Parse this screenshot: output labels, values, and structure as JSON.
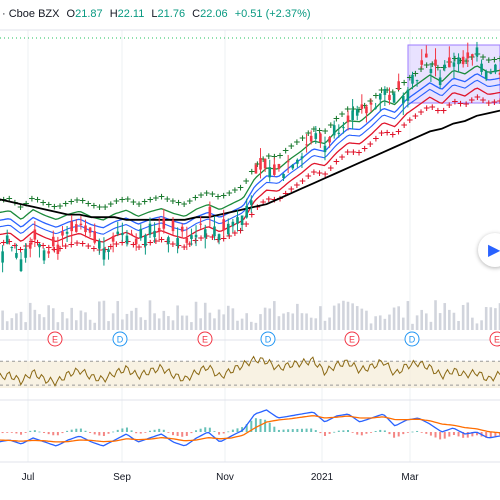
{
  "header": {
    "exchange": "· Cboe BZX",
    "o_label": "O",
    "o_value": "21.87",
    "h_label": "H",
    "h_value": "22.11",
    "l_label": "L",
    "l_value": "21.76",
    "c_label": "C",
    "c_value": "22.06",
    "change": "+0.51 (+2.37%)"
  },
  "colors": {
    "up": "#089981",
    "down": "#f23645",
    "ma_black": "#000000",
    "ribbon_green": "#1b8a3a",
    "ribbon_blue": "#2962ff",
    "ribbon_red": "#e0142b",
    "cross_green": "#1b7a2f",
    "cross_red": "#e0142b",
    "rsi": "#8b6914",
    "macd": "#2962ff",
    "signal": "#ff6d00",
    "box": "#9c7bff"
  },
  "event_markers": [
    {
      "type": "E",
      "color": "#f23645"
    },
    {
      "type": "D",
      "color": "#2196f3"
    },
    {
      "type": "E",
      "color": "#f23645"
    },
    {
      "type": "D",
      "color": "#2196f3"
    },
    {
      "type": "E",
      "color": "#f23645"
    },
    {
      "type": "D",
      "color": "#2196f3"
    },
    {
      "type": "E",
      "color": "#f23645"
    }
  ],
  "x_axis": [
    "Jul",
    "Sep",
    "Nov",
    "2021",
    "Mar"
  ],
  "chart_data": {
    "type": "line",
    "price_close": [
      15.2,
      15.4,
      14.9,
      15.6,
      15.3,
      15.1,
      15.5,
      15.7,
      15.4,
      15.2,
      15.6,
      15.9,
      15.5,
      15.8,
      16.0,
      15.7,
      15.5,
      15.9,
      16.2,
      15.8,
      16.1,
      16.4,
      17.6,
      18.2,
      18.0,
      18.5,
      18.9,
      19.4,
      19.1,
      19.8,
      20.3,
      20.1,
      20.6,
      21.2,
      20.8,
      21.5,
      21.9,
      22.3,
      21.8,
      22.4,
      22.1,
      22.5,
      22.0,
      22.06
    ],
    "ma_long": [
      17.0,
      16.9,
      16.8,
      16.7,
      16.6,
      16.5,
      16.4,
      16.4,
      16.3,
      16.3,
      16.3,
      16.2,
      16.2,
      16.2,
      16.2,
      16.2,
      16.2,
      16.3,
      16.3,
      16.4,
      16.5,
      16.6,
      16.7,
      16.8,
      17.0,
      17.2,
      17.4,
      17.6,
      17.8,
      18.0,
      18.2,
      18.4,
      18.6,
      18.8,
      19.0,
      19.2,
      19.4,
      19.6,
      19.7,
      19.9,
      20.0,
      20.2,
      20.3,
      20.4
    ],
    "rsi": [
      52,
      55,
      48,
      58,
      50,
      47,
      56,
      60,
      53,
      50,
      57,
      62,
      54,
      59,
      63,
      55,
      50,
      58,
      64,
      53,
      60,
      66,
      72,
      70,
      62,
      66,
      68,
      71,
      58,
      66,
      69,
      60,
      64,
      70,
      56,
      65,
      68,
      63,
      54,
      60,
      55,
      58,
      50,
      56
    ],
    "macd": [
      0.1,
      0.15,
      0.05,
      0.2,
      0.1,
      0.0,
      0.15,
      0.25,
      0.1,
      0.0,
      0.15,
      0.3,
      0.1,
      0.2,
      0.3,
      0.1,
      0.0,
      0.2,
      0.35,
      0.1,
      0.25,
      0.4,
      0.8,
      0.9,
      0.7,
      0.75,
      0.8,
      0.85,
      0.6,
      0.75,
      0.8,
      0.6,
      0.7,
      0.8,
      0.5,
      0.65,
      0.7,
      0.55,
      0.35,
      0.45,
      0.3,
      0.35,
      0.2,
      0.25
    ],
    "signal": [
      0.15,
      0.14,
      0.12,
      0.14,
      0.13,
      0.1,
      0.11,
      0.15,
      0.14,
      0.11,
      0.12,
      0.18,
      0.16,
      0.17,
      0.21,
      0.18,
      0.13,
      0.15,
      0.21,
      0.18,
      0.2,
      0.27,
      0.45,
      0.6,
      0.65,
      0.68,
      0.72,
      0.76,
      0.7,
      0.72,
      0.75,
      0.7,
      0.7,
      0.73,
      0.66,
      0.66,
      0.67,
      0.63,
      0.55,
      0.52,
      0.46,
      0.43,
      0.36,
      0.33
    ]
  }
}
